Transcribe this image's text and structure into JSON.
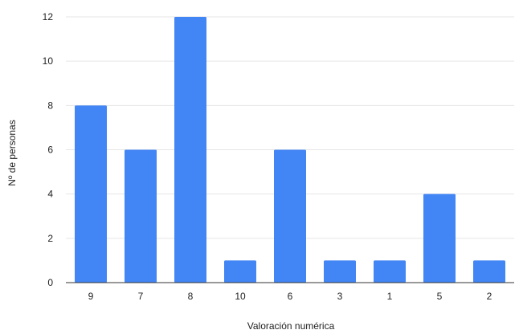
{
  "chart_data": {
    "type": "bar",
    "title": "",
    "xlabel": "Valoración numérica",
    "ylabel": "Nº de personas",
    "categories": [
      "9",
      "7",
      "8",
      "10",
      "6",
      "3",
      "1",
      "5",
      "2"
    ],
    "values": [
      8,
      6,
      12,
      1,
      6,
      1,
      1,
      4,
      1
    ],
    "ylim": [
      0,
      12
    ],
    "yticks": [
      "0",
      "2",
      "4",
      "6",
      "8",
      "10",
      "12"
    ],
    "grid": true,
    "legend": "none",
    "colors": {
      "bar": "#4285f4",
      "grid": "#e6e6e6",
      "axis": "#333333"
    }
  }
}
